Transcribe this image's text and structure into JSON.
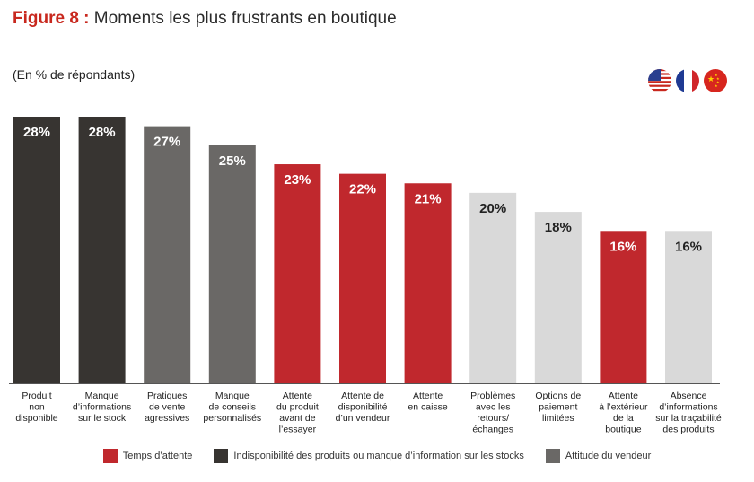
{
  "header": {
    "figure_label": "Figure 8 :",
    "title": "Moments les plus frustrants en boutique",
    "subtitle": "(En % de répondants)"
  },
  "flags": [
    {
      "name": "usa-flag-icon",
      "country": "USA"
    },
    {
      "name": "france-flag-icon",
      "country": "France"
    },
    {
      "name": "china-flag-icon",
      "country": "Chine"
    }
  ],
  "colors": {
    "temps_attente": "#c0282d",
    "indisponibilite": "#373431",
    "attitude": "#6a6866",
    "autre": "#d9d9d9",
    "accent": "#c8281e"
  },
  "legend": [
    {
      "label": "Temps d’attente",
      "color_key": "temps_attente"
    },
    {
      "label": "Indisponibilité des produits ou manque d’information sur les stocks",
      "color_key": "indisponibilite"
    },
    {
      "label": "Attitude du vendeur",
      "color_key": "attitude"
    }
  ],
  "chart_data": {
    "type": "bar",
    "title": "Moments les plus frustrants en boutique",
    "ylabel": "(En % de répondants)",
    "ylim": [
      0,
      28
    ],
    "grid": false,
    "categories": [
      [
        "Produit",
        "non",
        "disponible"
      ],
      [
        "Manque",
        "d’informations",
        "sur le stock"
      ],
      [
        "Pratiques",
        "de vente",
        "agressives"
      ],
      [
        "Manque",
        "de conseils",
        "personnalisés"
      ],
      [
        "Attente",
        "du produit",
        "avant de",
        "l’essayer"
      ],
      [
        "Attente de",
        "disponibilité",
        "d’un vendeur"
      ],
      [
        "Attente",
        "en caisse"
      ],
      [
        "Problèmes",
        "avec les",
        "retours/",
        "échanges"
      ],
      [
        "Options de",
        "paiement",
        "limitées"
      ],
      [
        "Attente",
        "à l’extérieur",
        "de la",
        "boutique"
      ],
      [
        "Absence",
        "d’informations",
        "sur la traçabilité",
        "des produits"
      ]
    ],
    "values": [
      28,
      28,
      27,
      25,
      23,
      22,
      21,
      20,
      18,
      16,
      16
    ],
    "value_labels": [
      "28%",
      "28%",
      "27%",
      "25%",
      "23%",
      "22%",
      "21%",
      "20%",
      "18%",
      "16%",
      "16%"
    ],
    "color_keys": [
      "indisponibilite",
      "indisponibilite",
      "attitude",
      "attitude",
      "temps_attente",
      "temps_attente",
      "temps_attente",
      "autre",
      "autre",
      "temps_attente",
      "autre"
    ]
  }
}
